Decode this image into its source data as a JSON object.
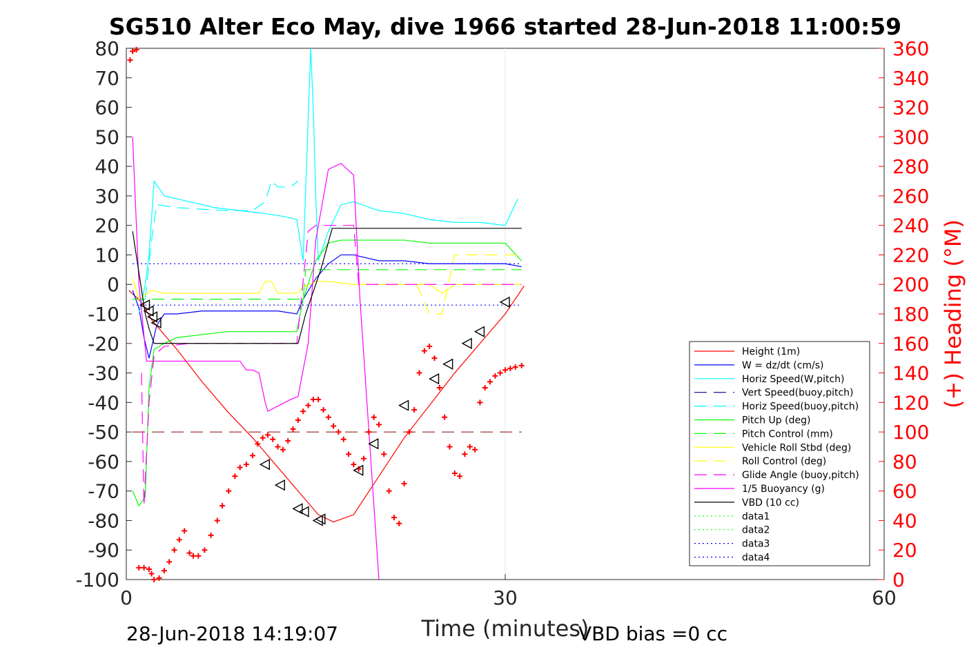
{
  "chart_data": {
    "type": "line",
    "title": "SG510 Alter Eco May, dive 1966 started 28-Jun-2018 11:00:59",
    "xlabel": "Time (minutes)",
    "ylabel_right": "(+) Heading (°M)",
    "xlim": [
      0,
      60
    ],
    "ylim": [
      -100,
      80
    ],
    "ylim_right": [
      0,
      360
    ],
    "x_ticks": [
      "0",
      "30",
      "60"
    ],
    "y_ticks": [
      "80",
      "70",
      "60",
      "50",
      "40",
      "30",
      "20",
      "10",
      "0",
      "-10",
      "-20",
      "-30",
      "-40",
      "-50",
      "-60",
      "-70",
      "-80",
      "-90",
      "-100"
    ],
    "y_ticks_right": [
      "360",
      "340",
      "320",
      "300",
      "280",
      "260",
      "240",
      "220",
      "200",
      "180",
      "160",
      "140",
      "120",
      "100",
      "80",
      "60",
      "40",
      "20",
      "0"
    ],
    "grid_x": true,
    "legend_position": "bottom-right",
    "footer_left": "28-Jun-2018 14:19:07",
    "footer_right": "VBD bias =0 cc",
    "colors": {
      "red": "#ff0000",
      "blue": "#0000ff",
      "cyan": "#00ffff",
      "navy": "#00008b",
      "green": "#00ff00",
      "yellow": "#ffff00",
      "magenta": "#ff00ff",
      "black": "#000000"
    },
    "series": [
      {
        "name": "Height (1m)",
        "color": "#ff0000",
        "style": "solid",
        "x": [
          0.2,
          1.2,
          2,
          4,
          6,
          8,
          10,
          12,
          14,
          15.2,
          16.4,
          18,
          20,
          22,
          24,
          26,
          28,
          30,
          31.5
        ],
        "y": [
          -2,
          -6,
          -12,
          -22,
          -33,
          -43,
          -52,
          -62,
          -72,
          -78,
          -80.5,
          -78,
          -65,
          -52,
          -41,
          -30,
          -20,
          -10,
          -0.5
        ]
      },
      {
        "name": "W = dz/dt (cm/s)",
        "color": "#0000ff",
        "style": "solid",
        "x": [
          0.5,
          1,
          1.4,
          1.8,
          2.4,
          3,
          4,
          6,
          8,
          10,
          12,
          13.5,
          14,
          15,
          16,
          17,
          18,
          20,
          22,
          24,
          26,
          28,
          30,
          31.3
        ],
        "y": [
          -2,
          -8,
          -18,
          -25,
          -14,
          -10,
          -10,
          -9,
          -9,
          -9,
          -9,
          -10,
          -5,
          2,
          7,
          10,
          10,
          8,
          8,
          7,
          7,
          7,
          7,
          6
        ]
      },
      {
        "name": "Horiz Speed(W,pitch)",
        "color": "#00ffff",
        "style": "solid",
        "x": [
          1,
          1.5,
          1.8,
          2.2,
          3,
          5,
          7,
          9,
          11,
          12.5,
          13.5,
          14,
          14.6,
          14.8,
          15,
          15.2,
          16,
          17,
          18,
          20,
          22,
          24,
          26,
          28,
          30,
          31
        ],
        "y": [
          -10,
          0,
          10,
          35,
          30,
          28,
          26,
          25,
          24,
          23,
          22,
          8,
          80,
          60,
          30,
          8,
          18,
          27,
          28,
          25,
          24,
          22,
          21,
          21,
          20,
          29
        ]
      },
      {
        "name": "Vert Speed(buoy,pitch)",
        "color": "#00008b",
        "style": "dash",
        "x": [],
        "y": []
      },
      {
        "name": "Horiz Speed(buoy,pitch)",
        "color": "#00ffff",
        "style": "dash",
        "x": [
          1.5,
          2,
          2.4,
          4,
          8,
          10,
          11,
          11.5,
          12,
          13,
          13.6
        ],
        "y": [
          -5,
          15,
          27,
          26,
          25,
          25,
          28,
          35,
          33,
          33,
          35
        ]
      },
      {
        "name": "Pitch Up (deg)",
        "color": "#00ff00",
        "style": "solid",
        "x": [
          0.5,
          1,
          1.5,
          1.8,
          2.2,
          3,
          4,
          6,
          8,
          10,
          12,
          13.5,
          14,
          15,
          16,
          17,
          18,
          20,
          22,
          24,
          26,
          28,
          30,
          31.3
        ],
        "y": [
          -70,
          -75,
          -72,
          -35,
          -22,
          -20,
          -18,
          -17,
          -16,
          -16,
          -16,
          -16,
          -5,
          8,
          14,
          15,
          15,
          15,
          15,
          14,
          14,
          14,
          14,
          8
        ]
      },
      {
        "name": "Pitch Control (mm)",
        "color": "#00ff00",
        "style": "dash",
        "x": [
          0.5,
          14,
          14.2,
          31.3
        ],
        "y": [
          -5,
          -5,
          5,
          5
        ]
      },
      {
        "name": "Vehicle Roll Stbd (deg)",
        "color": "#ffff00",
        "style": "solid",
        "x": [
          0.5,
          1,
          2,
          3,
          6,
          9,
          10.5,
          11,
          11.5,
          12,
          12.5,
          13.5,
          14,
          15,
          16,
          18,
          20,
          22,
          24,
          25,
          26,
          28,
          30,
          31.3
        ],
        "y": [
          2,
          -5,
          -2,
          -3,
          -3,
          -3,
          -3,
          1,
          1,
          -3,
          -3,
          -3,
          -1,
          1,
          1,
          0,
          0,
          0,
          0,
          -3,
          0,
          0,
          0,
          0
        ]
      },
      {
        "name": "Roll Control (deg)",
        "color": "#ffff00",
        "style": "dash",
        "x": [
          23,
          24,
          25,
          25.5,
          26,
          31.3
        ],
        "y": [
          0,
          -10,
          -10,
          0,
          10,
          10
        ]
      },
      {
        "name": "Glide Angle (buoy,pitch)",
        "color": "#ff00ff",
        "style": "dash",
        "x": [
          1.2,
          1.4,
          1.8,
          2.2,
          3,
          5,
          8,
          10,
          12,
          13.5,
          14.4,
          15,
          16,
          18,
          18.4,
          20,
          25,
          31.3
        ],
        "y": [
          -30,
          -75,
          -40,
          -24,
          -21,
          -20,
          -20,
          -20,
          -20,
          -20,
          18,
          20,
          20,
          20,
          0,
          0,
          0,
          0
        ]
      },
      {
        "name": "1/5 Buoyancy (g)",
        "color": "#ff00ff",
        "style": "solid",
        "x": [
          0.5,
          1,
          1.6,
          2.5,
          6,
          8,
          9,
          9.5,
          10,
          10.5,
          11,
          11.2,
          13,
          13.6,
          14.4,
          15,
          16,
          17,
          18,
          18.5,
          20
        ],
        "y": [
          50,
          0,
          -26,
          -26,
          -26,
          -26,
          -26,
          -29,
          -29,
          -30,
          -40,
          -43,
          -39,
          -38,
          -20,
          15,
          39,
          41,
          37,
          -5,
          -100
        ]
      },
      {
        "name": "VBD (10 cc)",
        "color": "#000000",
        "style": "solid",
        "x": [
          0.5,
          1.5,
          1.8,
          2.2,
          3,
          6,
          9,
          12,
          13.6,
          14.2,
          15.4,
          16.3,
          18,
          20,
          25,
          31.3
        ],
        "y": [
          18,
          -10,
          -15,
          -20,
          -20,
          -20,
          -20,
          -20,
          -20,
          -10,
          5,
          19,
          19,
          19,
          19,
          19
        ]
      },
      {
        "name": "data1",
        "color": "#00ff00",
        "style": "dot",
        "x": [],
        "y": []
      },
      {
        "name": "data2",
        "color": "#00ff00",
        "style": "dot",
        "x": [],
        "y": []
      },
      {
        "name": "data3",
        "color": "#0000ff",
        "style": "dot",
        "x": [
          0.5,
          31.3
        ],
        "y": [
          7,
          7
        ]
      },
      {
        "name": "data4",
        "color": "#0000ff",
        "style": "dot",
        "x": [
          0.5,
          31.3
        ],
        "y": [
          -7,
          -7
        ]
      }
    ],
    "hidden_series": [
      {
        "color": "#8b0000",
        "style": "dash",
        "x": [
          0.5,
          31.3
        ],
        "y": [
          -50,
          -50
        ]
      }
    ],
    "heading_points": {
      "color": "#ff0000",
      "marker": "+",
      "axis": "right",
      "x": [
        0.3,
        0.5,
        0.8,
        1,
        1.4,
        1.8,
        2,
        2.2,
        2.6,
        3,
        3.4,
        3.8,
        4.2,
        4.6,
        5,
        5.3,
        5.7,
        6.2,
        6.7,
        7.2,
        7.6,
        8.1,
        8.6,
        9,
        9.5,
        10,
        10.4,
        10.8,
        11.2,
        11.6,
        12,
        12.4,
        12.8,
        13.2,
        13.6,
        14,
        14.4,
        14.8,
        15.2,
        15.6,
        16,
        16.4,
        16.8,
        17.2,
        17.6,
        18,
        18.4,
        18.8,
        19.2,
        19.6,
        20,
        20.4,
        20.8,
        21.2,
        21.6,
        22,
        22.4,
        22.8,
        23.2,
        23.6,
        24,
        24.4,
        24.8,
        25.2,
        25.6,
        26,
        26.4,
        26.8,
        27.2,
        27.6,
        28,
        28.4,
        28.8,
        29.2,
        29.6,
        30,
        30.4,
        30.8,
        31.3
      ],
      "y": [
        352,
        358,
        359,
        8,
        8,
        7,
        4,
        0,
        1,
        6,
        12,
        20,
        27,
        33,
        18,
        16,
        16,
        20,
        30,
        40,
        50,
        60,
        70,
        76,
        78,
        84,
        92,
        96,
        98,
        95,
        90,
        88,
        94,
        102,
        108,
        114,
        118,
        122,
        122,
        115,
        110,
        104,
        100,
        95,
        85,
        78,
        75,
        82,
        100,
        110,
        105,
        85,
        60,
        42,
        38,
        65,
        100,
        115,
        140,
        155,
        158,
        150,
        130,
        110,
        90,
        72,
        70,
        85,
        90,
        88,
        120,
        130,
        134,
        138,
        140,
        142,
        143,
        144,
        145
      ]
    },
    "triangle_markers": {
      "color": "#000000",
      "marker": "triangle-left",
      "x": [
        1.5,
        1.8,
        2.1,
        2.4,
        11,
        12.2,
        13.6,
        14.1,
        15.2,
        15.4,
        18.4,
        19.6,
        22,
        24.4,
        25.5,
        27,
        28,
        30
      ],
      "y": [
        -7,
        -9,
        -11,
        -13,
        -61,
        -68,
        -76,
        -77,
        -80,
        -79.5,
        -63,
        -54,
        -41,
        -32,
        -27,
        -20,
        -16,
        -6
      ]
    }
  }
}
